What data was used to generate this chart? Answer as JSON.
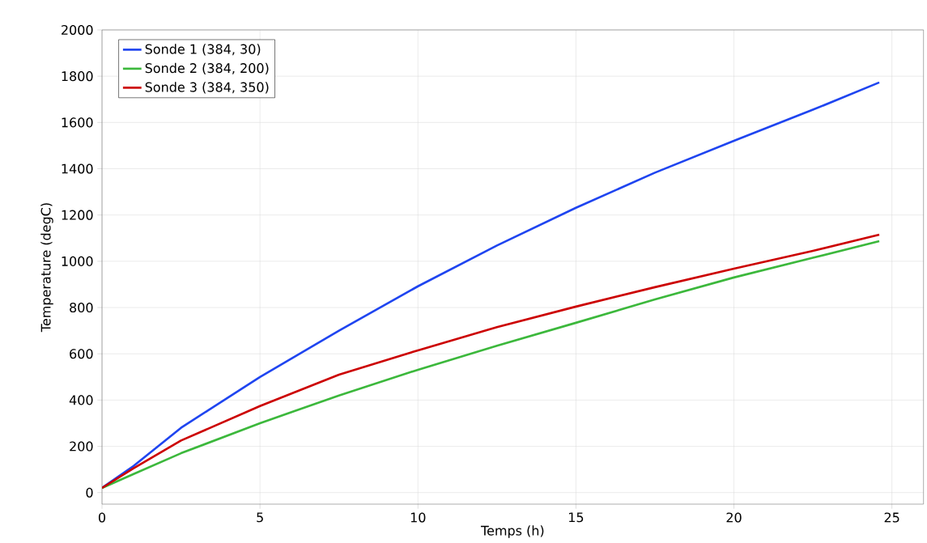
{
  "chart_data": {
    "type": "line",
    "xlabel": "Temps (h)",
    "ylabel": "Temperature (degC)",
    "xlim": [
      0,
      26
    ],
    "ylim": [
      -50,
      2000
    ],
    "xticks": [
      0,
      5,
      10,
      15,
      20,
      25
    ],
    "yticks": [
      0,
      200,
      400,
      600,
      800,
      1000,
      1200,
      1400,
      1600,
      1800,
      2000
    ],
    "grid": true,
    "legend": "top left",
    "marker": "none",
    "line_style": "solid",
    "x": [
      0,
      1,
      2.5,
      5,
      7.5,
      10,
      12.5,
      15,
      17.5,
      20,
      22.5,
      24.6
    ],
    "series": [
      {
        "name": "Sonde 1 (384, 30)",
        "color": "#1f45f0",
        "values": [
          20,
          115,
          280,
          500,
          700,
          892,
          1068,
          1231,
          1383,
          1521,
          1655,
          1773
        ]
      },
      {
        "name": "Sonde 2 (384, 200)",
        "color": "#3cb83c",
        "values": [
          20,
          80,
          170,
          300,
          420,
          531,
          635,
          734,
          835,
          930,
          1015,
          1087
        ]
      },
      {
        "name": "Sonde 3 (384, 350)",
        "color": "#cc0000",
        "values": [
          20,
          105,
          225,
          374,
          510,
          615,
          715,
          804,
          888,
          968,
          1045,
          1115
        ]
      }
    ]
  }
}
